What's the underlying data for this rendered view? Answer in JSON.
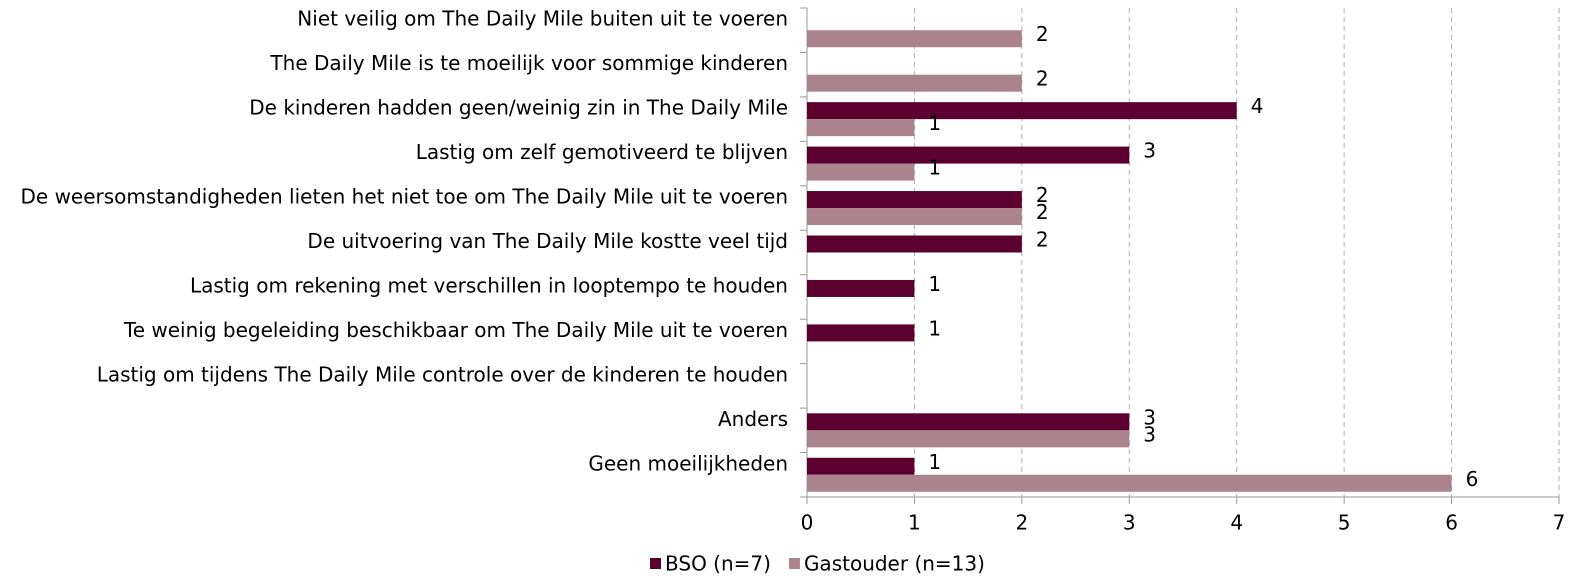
{
  "chart_data": {
    "type": "barh",
    "categories": [
      "Niet veilig om The Daily Mile buiten uit te voeren",
      "The Daily Mile is te moeilijk voor sommige kinderen",
      "De kinderen hadden geen/weinig zin in The Daily Mile",
      "Lastig om zelf gemotiveerd te blijven",
      "De weersomstandigheden lieten het niet toe om The Daily Mile uit te voeren",
      "De uitvoering van The Daily Mile kostte veel tijd",
      "Lastig om rekening met verschillen in looptempo te houden",
      "Te weinig begeleiding beschikbaar om The Daily Mile uit te voeren",
      "Lastig om tijdens The Daily Mile controle over de kinderen te houden",
      "Anders",
      "Geen moeilijkheden"
    ],
    "series": [
      {
        "name": "BSO (n=7)",
        "color": "#5c0030",
        "values": [
          null,
          null,
          4,
          3,
          2,
          2,
          1,
          1,
          null,
          3,
          1
        ]
      },
      {
        "name": "Gastouder (n=13)",
        "color": "#ab838c",
        "values": [
          2,
          2,
          1,
          1,
          2,
          null,
          null,
          null,
          null,
          3,
          6
        ]
      }
    ],
    "xlim": [
      0,
      7
    ],
    "xticks": [
      0,
      1,
      2,
      3,
      4,
      5,
      6,
      7
    ],
    "grid": true,
    "legend": "bottom"
  }
}
